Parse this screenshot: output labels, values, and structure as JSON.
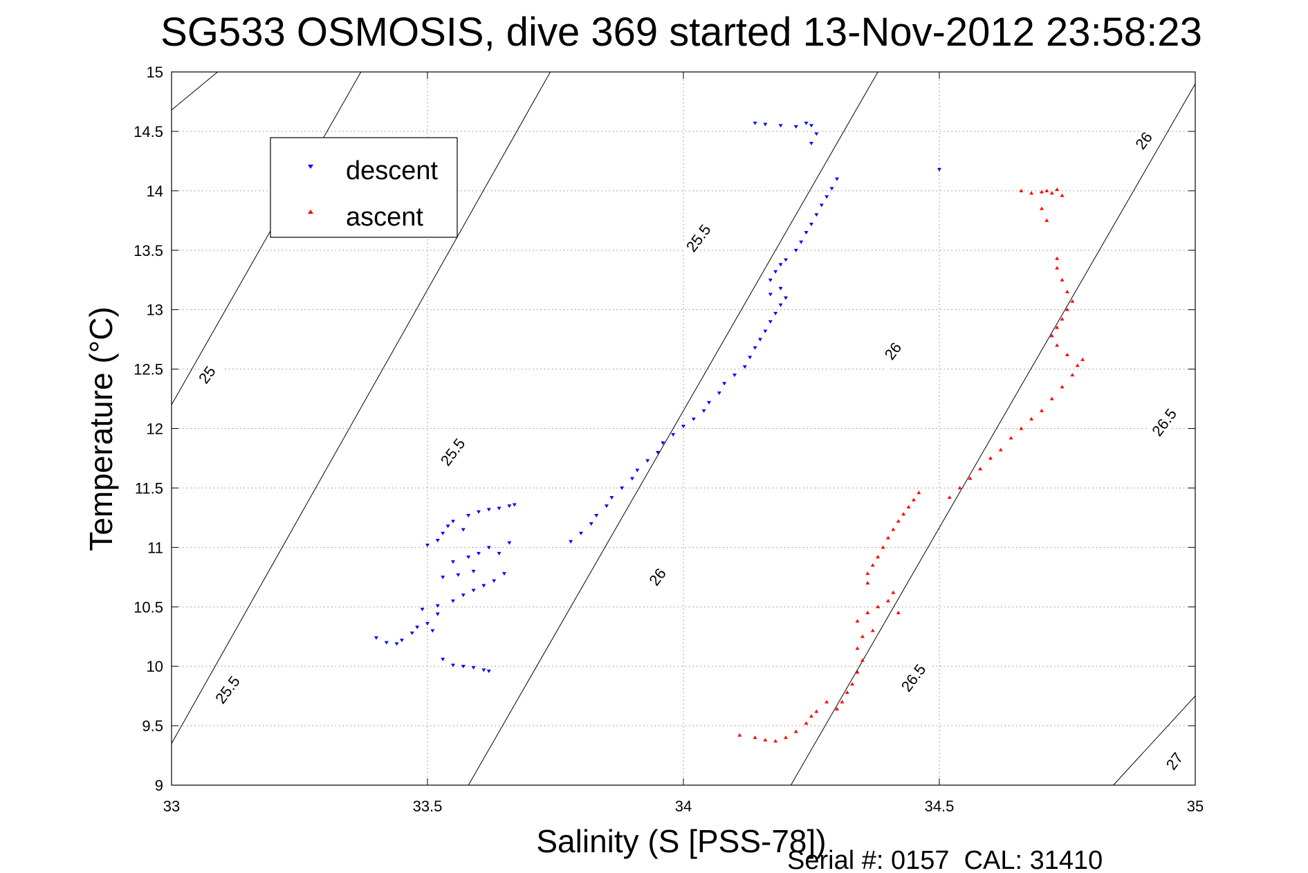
{
  "chart_data": {
    "type": "scatter",
    "title": "SG533 OSMOSIS, dive 369 started 13-Nov-2012 23:58:23",
    "xlabel": "Salinity (S [PSS-78])",
    "ylabel": "Temperature (°C)",
    "xlim": [
      33,
      35
    ],
    "ylim": [
      9,
      15
    ],
    "xticks": [
      33,
      33.5,
      34,
      34.5,
      35
    ],
    "xtick_labels": [
      "33",
      "33.5",
      "34",
      "34.5",
      "35"
    ],
    "yticks": [
      9,
      9.5,
      10,
      10.5,
      11,
      11.5,
      12,
      12.5,
      13,
      13.5,
      14,
      14.5,
      15
    ],
    "ytick_labels": [
      "9",
      "9.5",
      "10",
      "10.5",
      "11",
      "11.5",
      "12",
      "12.5",
      "13",
      "13.5",
      "14",
      "14.5",
      "15"
    ],
    "grid": true,
    "grid_style": "dotted",
    "legend_position": "top-left",
    "series": [
      {
        "name": "descent",
        "color": "#0000ff",
        "marker": "triangle-down",
        "points": [
          [
            33.4,
            10.24
          ],
          [
            33.42,
            10.2
          ],
          [
            33.44,
            10.19
          ],
          [
            33.45,
            10.22
          ],
          [
            33.47,
            10.28
          ],
          [
            33.48,
            10.33
          ],
          [
            33.5,
            10.36
          ],
          [
            33.51,
            10.3
          ],
          [
            33.52,
            10.44
          ],
          [
            33.49,
            10.48
          ],
          [
            33.52,
            10.51
          ],
          [
            33.55,
            10.55
          ],
          [
            33.57,
            10.6
          ],
          [
            33.59,
            10.64
          ],
          [
            33.61,
            10.68
          ],
          [
            33.63,
            10.72
          ],
          [
            33.65,
            10.78
          ],
          [
            33.53,
            10.75
          ],
          [
            33.56,
            10.77
          ],
          [
            33.59,
            10.8
          ],
          [
            33.55,
            10.88
          ],
          [
            33.58,
            10.92
          ],
          [
            33.6,
            10.95
          ],
          [
            33.62,
            11.0
          ],
          [
            33.64,
            10.95
          ],
          [
            33.66,
            11.04
          ],
          [
            33.5,
            11.02
          ],
          [
            33.52,
            11.06
          ],
          [
            33.53,
            11.12
          ],
          [
            33.54,
            11.18
          ],
          [
            33.55,
            11.22
          ],
          [
            33.57,
            11.15
          ],
          [
            33.58,
            11.27
          ],
          [
            33.6,
            11.3
          ],
          [
            33.62,
            11.32
          ],
          [
            33.64,
            11.33
          ],
          [
            33.66,
            11.35
          ],
          [
            33.67,
            11.36
          ],
          [
            33.53,
            10.06
          ],
          [
            33.55,
            10.01
          ],
          [
            33.57,
            10.0
          ],
          [
            33.59,
            9.99
          ],
          [
            33.61,
            9.97
          ],
          [
            33.62,
            9.96
          ],
          [
            33.78,
            11.05
          ],
          [
            33.8,
            11.12
          ],
          [
            33.82,
            11.2
          ],
          [
            33.83,
            11.27
          ],
          [
            33.85,
            11.35
          ],
          [
            33.86,
            11.42
          ],
          [
            33.88,
            11.5
          ],
          [
            33.9,
            11.58
          ],
          [
            33.91,
            11.65
          ],
          [
            33.93,
            11.73
          ],
          [
            33.95,
            11.8
          ],
          [
            33.96,
            11.88
          ],
          [
            33.98,
            11.95
          ],
          [
            34.0,
            12.02
          ],
          [
            34.02,
            12.08
          ],
          [
            34.04,
            12.15
          ],
          [
            34.05,
            12.22
          ],
          [
            34.07,
            12.3
          ],
          [
            34.08,
            12.38
          ],
          [
            34.1,
            12.45
          ],
          [
            34.12,
            12.52
          ],
          [
            34.13,
            12.6
          ],
          [
            34.14,
            12.68
          ],
          [
            34.15,
            12.75
          ],
          [
            34.16,
            12.82
          ],
          [
            34.17,
            12.9
          ],
          [
            34.18,
            12.97
          ],
          [
            34.19,
            13.04
          ],
          [
            34.2,
            13.1
          ],
          [
            34.17,
            13.13
          ],
          [
            34.19,
            13.18
          ],
          [
            34.17,
            13.25
          ],
          [
            34.18,
            13.32
          ],
          [
            34.19,
            13.38
          ],
          [
            34.2,
            13.42
          ],
          [
            34.22,
            13.5
          ],
          [
            34.23,
            13.57
          ],
          [
            34.24,
            13.65
          ],
          [
            34.25,
            13.72
          ],
          [
            34.26,
            13.8
          ],
          [
            34.27,
            13.88
          ],
          [
            34.28,
            13.95
          ],
          [
            34.29,
            14.02
          ],
          [
            34.3,
            14.1
          ],
          [
            34.14,
            14.57
          ],
          [
            34.16,
            14.56
          ],
          [
            34.19,
            14.55
          ],
          [
            34.22,
            14.54
          ],
          [
            34.24,
            14.57
          ],
          [
            34.25,
            14.55
          ],
          [
            34.26,
            14.48
          ],
          [
            34.25,
            14.4
          ],
          [
            34.5,
            14.18
          ]
        ]
      },
      {
        "name": "ascent",
        "color": "#ff0000",
        "marker": "triangle-up",
        "points": [
          [
            34.11,
            9.42
          ],
          [
            34.14,
            9.4
          ],
          [
            34.16,
            9.38
          ],
          [
            34.18,
            9.37
          ],
          [
            34.2,
            9.4
          ],
          [
            34.22,
            9.45
          ],
          [
            34.24,
            9.52
          ],
          [
            34.25,
            9.58
          ],
          [
            34.26,
            9.62
          ],
          [
            34.28,
            9.7
          ],
          [
            34.3,
            9.64
          ],
          [
            34.31,
            9.7
          ],
          [
            34.32,
            9.78
          ],
          [
            34.33,
            9.85
          ],
          [
            34.34,
            9.95
          ],
          [
            34.35,
            10.05
          ],
          [
            34.34,
            10.15
          ],
          [
            34.35,
            10.25
          ],
          [
            34.37,
            10.3
          ],
          [
            34.34,
            10.38
          ],
          [
            34.36,
            10.45
          ],
          [
            34.38,
            10.5
          ],
          [
            34.4,
            10.55
          ],
          [
            34.42,
            10.45
          ],
          [
            34.41,
            10.62
          ],
          [
            34.36,
            10.7
          ],
          [
            34.36,
            10.78
          ],
          [
            34.37,
            10.85
          ],
          [
            34.38,
            10.92
          ],
          [
            34.39,
            11.0
          ],
          [
            34.4,
            11.08
          ],
          [
            34.41,
            11.15
          ],
          [
            34.42,
            11.22
          ],
          [
            34.43,
            11.28
          ],
          [
            34.44,
            11.34
          ],
          [
            34.45,
            11.4
          ],
          [
            34.46,
            11.46
          ],
          [
            34.52,
            11.42
          ],
          [
            34.54,
            11.5
          ],
          [
            34.56,
            11.58
          ],
          [
            34.58,
            11.66
          ],
          [
            34.6,
            11.75
          ],
          [
            34.62,
            11.82
          ],
          [
            34.64,
            11.92
          ],
          [
            34.66,
            12.0
          ],
          [
            34.68,
            12.08
          ],
          [
            34.7,
            12.15
          ],
          [
            34.72,
            12.25
          ],
          [
            34.74,
            12.35
          ],
          [
            34.76,
            12.45
          ],
          [
            34.77,
            12.53
          ],
          [
            34.78,
            12.58
          ],
          [
            34.75,
            12.62
          ],
          [
            34.73,
            12.7
          ],
          [
            34.72,
            12.78
          ],
          [
            34.73,
            12.85
          ],
          [
            34.74,
            12.92
          ],
          [
            34.75,
            13.0
          ],
          [
            34.76,
            13.07
          ],
          [
            34.75,
            13.15
          ],
          [
            34.74,
            13.25
          ],
          [
            34.73,
            13.35
          ],
          [
            34.73,
            13.43
          ],
          [
            34.7,
            13.85
          ],
          [
            34.71,
            13.75
          ],
          [
            34.66,
            14.0
          ],
          [
            34.68,
            13.98
          ],
          [
            34.7,
            13.99
          ],
          [
            34.71,
            14.0
          ],
          [
            34.72,
            13.98
          ],
          [
            34.73,
            14.01
          ],
          [
            34.74,
            13.96
          ]
        ]
      }
    ],
    "isopycnals": [
      {
        "level": 25,
        "labels": [
          "25"
        ],
        "color": "#000000"
      },
      {
        "level": 25.5,
        "labels": [
          "25.5",
          "25.5",
          "25.5"
        ],
        "color": "#000000"
      },
      {
        "level": 26,
        "labels": [
          "26",
          "26",
          "26"
        ],
        "color": "#000000"
      },
      {
        "level": 26.5,
        "labels": [
          "26.5",
          "26.5"
        ],
        "color": "#000000"
      },
      {
        "level": 27,
        "labels": [
          "27"
        ],
        "color": "#000000"
      }
    ]
  },
  "legend": {
    "entries": [
      {
        "label": "descent",
        "color": "#0000ff",
        "marker": "triangle-down"
      },
      {
        "label": "ascent",
        "color": "#ff0000",
        "marker": "triangle-up"
      }
    ]
  },
  "footer": {
    "serial_text": "Serial #: 0157  CAL: 31410"
  }
}
